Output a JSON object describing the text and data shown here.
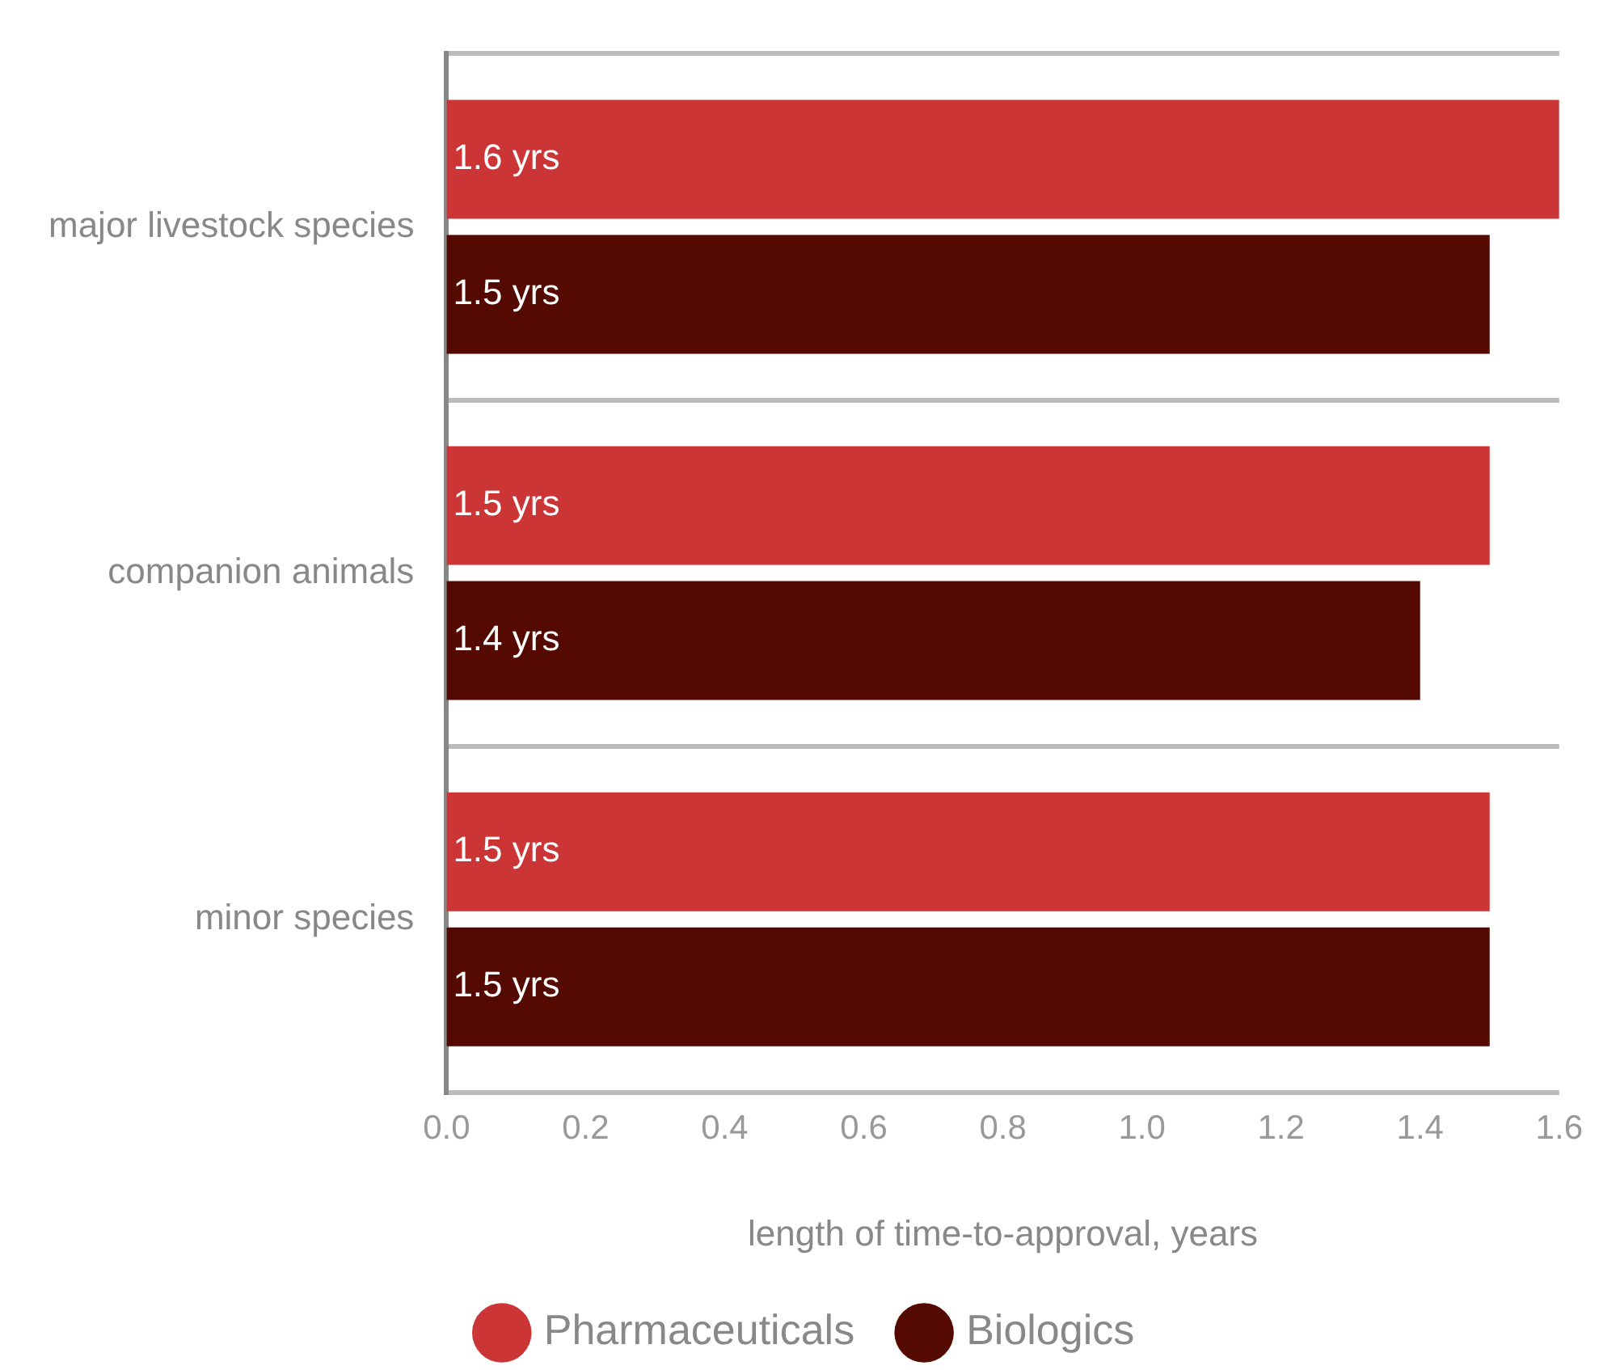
{
  "chart_data": {
    "type": "bar",
    "orientation": "horizontal",
    "xlabel": "length of time-to-approval, years",
    "categories": [
      "major livestock species",
      "companion animals",
      "minor species"
    ],
    "series": [
      {
        "name": "Pharmaceuticals",
        "color": "#cc3535",
        "values": [
          1.6,
          1.5,
          1.5
        ],
        "value_labels": [
          "1.6 yrs",
          "1.5 yrs",
          "1.5 yrs"
        ]
      },
      {
        "name": "Biologics",
        "color": "#540a00",
        "values": [
          1.5,
          1.4,
          1.5
        ],
        "value_labels": [
          "1.5 yrs",
          "1.4 yrs",
          "1.5 yrs"
        ]
      }
    ],
    "xlim": [
      0,
      1.6
    ],
    "xticks": [
      {
        "value": 0,
        "label": "0.0"
      },
      0.2,
      0.4,
      0.6,
      0.8,
      {
        "value": 1,
        "label": "1.0"
      },
      1.2,
      1.4,
      1.6
    ],
    "grid": "y",
    "legend": "bottom"
  }
}
